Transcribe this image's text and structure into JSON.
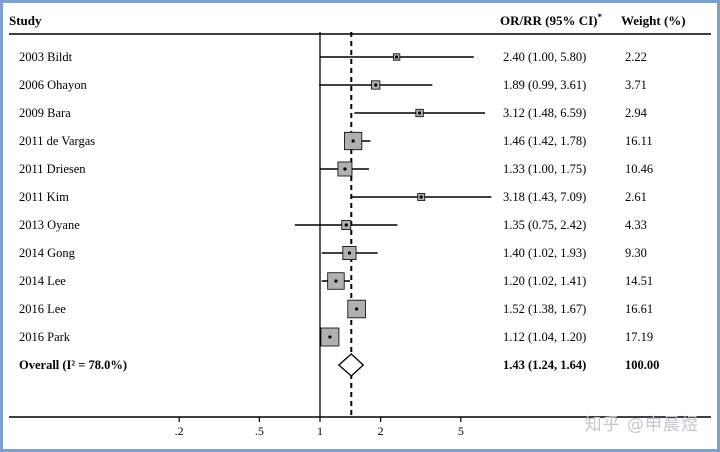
{
  "header": {
    "study": "Study",
    "effect": "OR/RR (95% CI)",
    "effect_sup": "*",
    "weight": "Weight (%)"
  },
  "watermark": "知乎 @申晨煜",
  "colors": {
    "box_fill": "#b0b0b0",
    "line": "#000000",
    "frame_border": "#7f9fd0"
  },
  "chart_data": {
    "type": "forest",
    "scale": "log",
    "x_ticks": [
      0.2,
      0.5,
      1,
      2,
      5
    ],
    "x_tick_labels": [
      ".2",
      ".5",
      "1",
      "2",
      "5"
    ],
    "null_line": 1,
    "overall_line": 1.43,
    "studies": [
      {
        "label": "2003 Bildt",
        "est": 2.4,
        "lo": 1.0,
        "hi": 5.8,
        "ci_text": "2.40 (1.00, 5.80)",
        "weight": 2.22,
        "weight_text": "2.22"
      },
      {
        "label": "2006 Ohayon",
        "est": 1.89,
        "lo": 0.99,
        "hi": 3.61,
        "ci_text": "1.89 (0.99, 3.61)",
        "weight": 3.71,
        "weight_text": "3.71"
      },
      {
        "label": "2009 Bara",
        "est": 3.12,
        "lo": 1.48,
        "hi": 6.59,
        "ci_text": "3.12 (1.48, 6.59)",
        "weight": 2.94,
        "weight_text": "2.94"
      },
      {
        "label": "2011 de Vargas",
        "est": 1.46,
        "lo": 1.42,
        "hi": 1.78,
        "ci_text": "1.46 (1.42, 1.78)",
        "weight": 16.11,
        "weight_text": "16.11"
      },
      {
        "label": "2011 Driesen",
        "est": 1.33,
        "lo": 1.0,
        "hi": 1.75,
        "ci_text": "1.33 (1.00, 1.75)",
        "weight": 10.46,
        "weight_text": "10.46"
      },
      {
        "label": "2011 Kim",
        "est": 3.18,
        "lo": 1.43,
        "hi": 7.09,
        "ci_text": "3.18 (1.43, 7.09)",
        "weight": 2.61,
        "weight_text": "2.61"
      },
      {
        "label": "2013 Oyane",
        "est": 1.35,
        "lo": 0.75,
        "hi": 2.42,
        "ci_text": "1.35 (0.75, 2.42)",
        "weight": 4.33,
        "weight_text": "4.33"
      },
      {
        "label": "2014 Gong",
        "est": 1.4,
        "lo": 1.02,
        "hi": 1.93,
        "ci_text": "1.40 (1.02, 1.93)",
        "weight": 9.3,
        "weight_text": "9.30"
      },
      {
        "label": "2014 Lee",
        "est": 1.2,
        "lo": 1.02,
        "hi": 1.41,
        "ci_text": "1.20 (1.02, 1.41)",
        "weight": 14.51,
        "weight_text": "14.51"
      },
      {
        "label": "2016 Lee",
        "est": 1.52,
        "lo": 1.38,
        "hi": 1.67,
        "ci_text": "1.52 (1.38, 1.67)",
        "weight": 16.61,
        "weight_text": "16.61"
      },
      {
        "label": "2016 Park",
        "est": 1.12,
        "lo": 1.04,
        "hi": 1.2,
        "ci_text": "1.12 (1.04, 1.20)",
        "weight": 17.19,
        "weight_text": "17.19"
      }
    ],
    "overall": {
      "label": "Overall  (I² = 78.0%)",
      "est": 1.43,
      "lo": 1.24,
      "hi": 1.64,
      "ci_text": "1.43 (1.24, 1.64)",
      "weight": 100.0,
      "weight_text": "100.00"
    }
  }
}
